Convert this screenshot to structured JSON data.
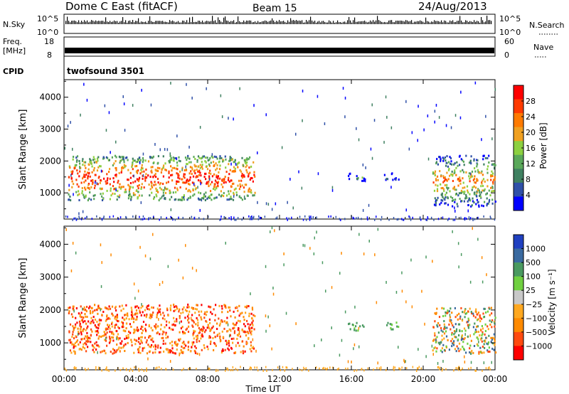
{
  "header": {
    "title": "Dome C East (fitACF)",
    "beam": "Beam 15",
    "date": "24/Aug/2013"
  },
  "strips": {
    "sky": {
      "left_label": "N.Sky",
      "left_ticks": [
        "10^5",
        "10^0"
      ],
      "right_ticks": [
        "10^5",
        "10^0"
      ],
      "right_label": "N.Search"
    },
    "freq": {
      "left_label_1": "Freq.",
      "left_label_2": "[MHz]",
      "left_ticks": [
        "18",
        "8"
      ],
      "right_ticks": [
        "60",
        "0"
      ],
      "right_label": "Nave"
    },
    "cpid": {
      "label": "CPID",
      "value": "twofsound 3501"
    }
  },
  "colors": {
    "power_scale": [
      "#0000ff",
      "#2f50a8",
      "#3f8060",
      "#5aa85a",
      "#8cd040",
      "#f0a020",
      "#ff7a00",
      "#ff3a00",
      "#ff0000"
    ],
    "velocity_scale": [
      "#ff0000",
      "#ff4a10",
      "#ff8a00",
      "#ffa820",
      "#c8c8c8",
      "#70d040",
      "#4a9a60",
      "#3a6aa0",
      "#2040c0"
    ]
  },
  "x_axis": {
    "label": "Time UT",
    "ticks": [
      "00:00",
      "04:00",
      "08:00",
      "12:00",
      "16:00",
      "20:00",
      "00:00"
    ]
  },
  "chart_data": [
    {
      "type": "heatmap",
      "name": "power",
      "ylabel": "Slant Range [km]",
      "xlim": [
        0,
        24
      ],
      "ylim": [
        180,
        4550
      ],
      "y_ticks": [
        1000,
        2000,
        3000,
        4000
      ],
      "colorbar": {
        "label": "Power [dB]",
        "ticks": [
          "28",
          "24",
          "20",
          "16",
          "12",
          "8",
          "4"
        ],
        "range": [
          0,
          32
        ]
      },
      "regions": [
        {
          "t": [
            0.2,
            10.6
          ],
          "r": [
            800,
            2200
          ],
          "level": "high"
        },
        {
          "t": [
            15.8,
            16.8
          ],
          "r": [
            1400,
            1650
          ],
          "level": "low"
        },
        {
          "t": [
            17.8,
            18.6
          ],
          "r": [
            1400,
            1650
          ],
          "level": "low"
        },
        {
          "t": [
            20.5,
            24
          ],
          "r": [
            600,
            2200
          ],
          "level": "medium"
        }
      ]
    },
    {
      "type": "heatmap",
      "name": "velocity",
      "ylabel": "Slant Range [km]",
      "xlim": [
        0,
        24
      ],
      "ylim": [
        180,
        4550
      ],
      "y_ticks": [
        1000,
        2000,
        3000,
        4000
      ],
      "colorbar": {
        "label": "Velocity [m s⁻¹]",
        "ticks": [
          "1000",
          "500",
          "100",
          "25",
          "−25",
          "−100",
          "−500",
          "−1000"
        ],
        "range": [
          -1500,
          1500
        ]
      },
      "regions": [
        {
          "t": [
            0.2,
            10.6
          ],
          "r": [
            700,
            2200
          ],
          "level": "negative"
        },
        {
          "t": [
            15.8,
            16.8
          ],
          "r": [
            1400,
            1650
          ],
          "level": "positive"
        },
        {
          "t": [
            17.8,
            18.6
          ],
          "r": [
            1400,
            1650
          ],
          "level": "positive"
        },
        {
          "t": [
            20.5,
            24
          ],
          "r": [
            700,
            2100
          ],
          "level": "mixed"
        }
      ]
    }
  ]
}
